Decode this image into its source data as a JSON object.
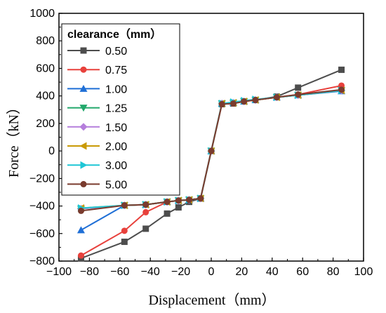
{
  "chart_data": {
    "type": "line",
    "xlabel": "Displacement（mm）",
    "ylabel": "Force（kN）",
    "xlim": [
      -100,
      100
    ],
    "ylim": [
      -800,
      1000
    ],
    "xticks": [
      -100,
      -80,
      -60,
      -40,
      -20,
      0,
      20,
      40,
      60,
      80,
      100
    ],
    "yticks": [
      -800,
      -600,
      -400,
      -200,
      0,
      200,
      400,
      600,
      800,
      1000
    ],
    "xtick_labels": [
      "−100",
      "−80",
      "−60",
      "−40",
      "−20",
      "0",
      "20",
      "40",
      "60",
      "80",
      "100"
    ],
    "ytick_labels": [
      "−800",
      "−600",
      "−400",
      "−200",
      "0",
      "200",
      "400",
      "600",
      "800",
      "1000"
    ],
    "grid": false,
    "legend": {
      "title": "clearance（mm）",
      "position": "top-left"
    },
    "series": [
      {
        "name": "0.50",
        "color": "#4d4d4d",
        "marker": "square",
        "x": [
          -85.5,
          -57,
          -43,
          -29,
          -21.5,
          -14.5,
          -7,
          0,
          7,
          14.5,
          21.5,
          29,
          43,
          57,
          85.5
        ],
        "y": [
          -780,
          -660,
          -565,
          -455,
          -410,
          -370,
          -345,
          0,
          340,
          345,
          360,
          370,
          395,
          460,
          590
        ]
      },
      {
        "name": "0.75",
        "color": "#e8413c",
        "marker": "circle",
        "x": [
          -85.5,
          -57,
          -43,
          -29,
          -21.5,
          -14.5,
          -7,
          0,
          7,
          14.5,
          21.5,
          29,
          43,
          57,
          85.5
        ],
        "y": [
          -760,
          -580,
          -445,
          -370,
          -360,
          -355,
          -345,
          0,
          340,
          345,
          360,
          370,
          390,
          410,
          475
        ]
      },
      {
        "name": "1.00",
        "color": "#1f6fd6",
        "marker": "triangle-up",
        "x": [
          -85.5,
          -57,
          -43,
          -29,
          -21.5,
          -14.5,
          -7,
          0,
          7,
          14.5,
          21.5,
          29,
          43,
          57,
          85.5
        ],
        "y": [
          -575,
          -395,
          -390,
          -370,
          -360,
          -355,
          -345,
          0,
          345,
          350,
          360,
          370,
          390,
          405,
          435
        ]
      },
      {
        "name": "1.25",
        "color": "#22a86b",
        "marker": "triangle-down",
        "x": [
          -85.5,
          -57,
          -43,
          -29,
          -21.5,
          -14.5,
          -7,
          0,
          7,
          14.5,
          21.5,
          29,
          43,
          57,
          85.5
        ],
        "y": [
          -420,
          -395,
          -390,
          -370,
          -360,
          -355,
          -345,
          0,
          345,
          350,
          360,
          370,
          390,
          405,
          440
        ]
      },
      {
        "name": "1.50",
        "color": "#b57edc",
        "marker": "diamond",
        "x": [
          -85.5,
          -57,
          -43,
          -29,
          -21.5,
          -14.5,
          -7,
          0,
          7,
          14.5,
          21.5,
          29,
          43,
          57,
          85.5
        ],
        "y": [
          -420,
          -395,
          -390,
          -370,
          -360,
          -355,
          -345,
          0,
          345,
          350,
          360,
          370,
          390,
          405,
          440
        ]
      },
      {
        "name": "2.00",
        "color": "#c99a06",
        "marker": "triangle-left",
        "x": [
          -85.5,
          -57,
          -43,
          -29,
          -21.5,
          -14.5,
          -7,
          0,
          7,
          14.5,
          21.5,
          29,
          43,
          57,
          85.5
        ],
        "y": [
          -415,
          -395,
          -390,
          -370,
          -360,
          -355,
          -345,
          0,
          345,
          350,
          360,
          370,
          390,
          405,
          440
        ]
      },
      {
        "name": "3.00",
        "color": "#1ec6d6",
        "marker": "triangle-right",
        "x": [
          -85.5,
          -57,
          -43,
          -29,
          -21.5,
          -14.5,
          -7,
          0,
          7,
          14.5,
          21.5,
          29,
          43,
          57,
          85.5
        ],
        "y": [
          -415,
          -395,
          -390,
          -370,
          -360,
          -355,
          -345,
          0,
          345,
          355,
          365,
          375,
          390,
          405,
          440
        ]
      },
      {
        "name": "5.00",
        "color": "#7a3b2e",
        "marker": "circle",
        "x": [
          -85.5,
          -57,
          -43,
          -29,
          -21.5,
          -14.5,
          -7,
          0,
          7,
          14.5,
          21.5,
          29,
          43,
          57,
          85.5
        ],
        "y": [
          -435,
          -395,
          -390,
          -370,
          -360,
          -355,
          -345,
          0,
          340,
          345,
          360,
          370,
          390,
          410,
          445
        ]
      }
    ]
  }
}
